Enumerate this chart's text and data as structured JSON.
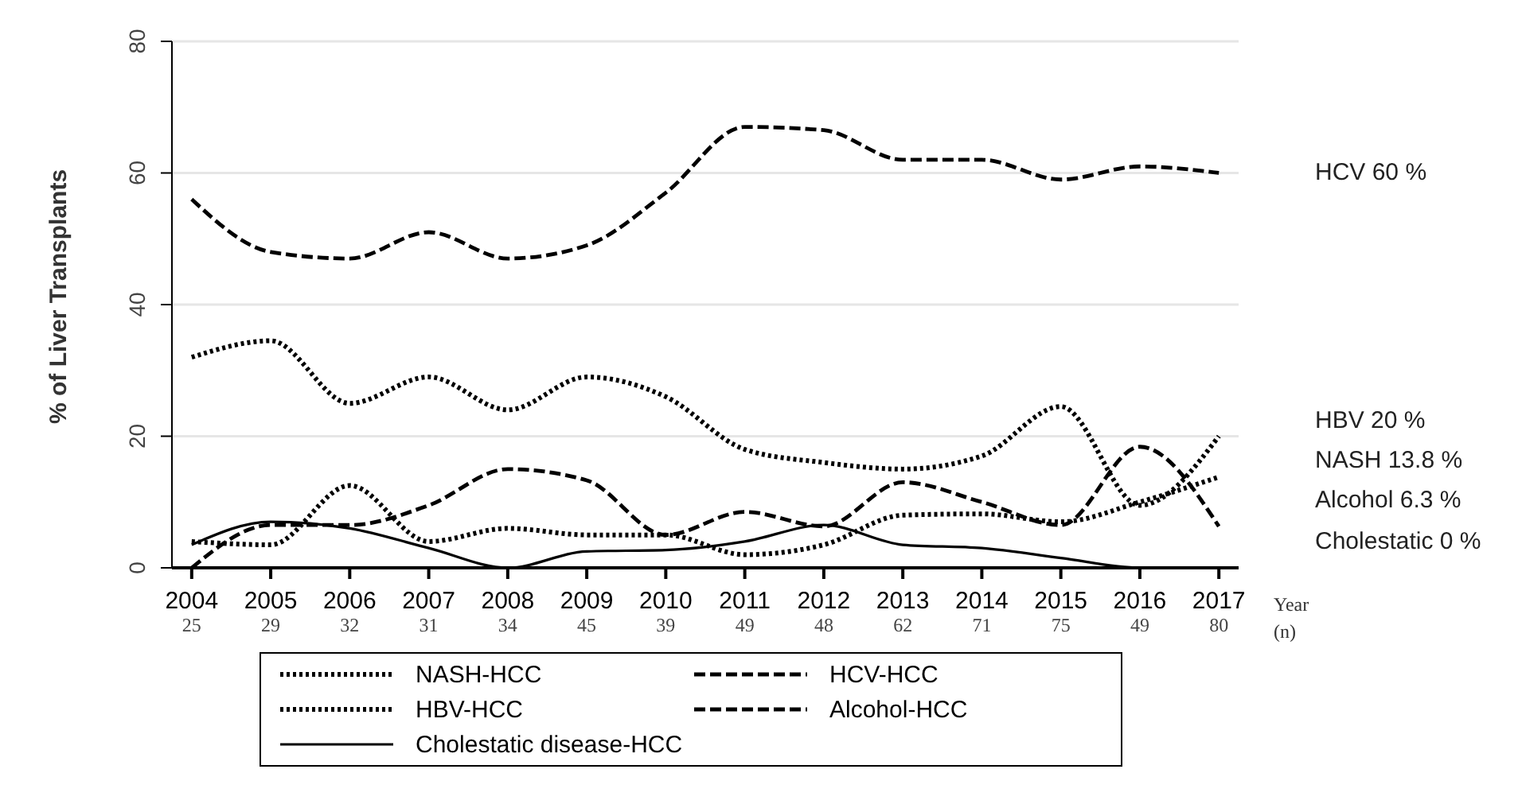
{
  "chart_data": {
    "type": "line",
    "ylabel": "% of Liver Transplants",
    "categories": [
      "2004",
      "2005",
      "2006",
      "2007",
      "2008",
      "2009",
      "2010",
      "2011",
      "2012",
      "2013",
      "2014",
      "2015",
      "2016",
      "2017"
    ],
    "ylim": [
      0,
      80
    ],
    "yticks": [
      0,
      20,
      40,
      60,
      80
    ],
    "grid": "y",
    "legend": "bottom",
    "series": [
      {
        "name": "NASH-HCC",
        "color": "#000000",
        "line_style": "dotted",
        "values": [
          4,
          3.5,
          12.5,
          4,
          6,
          5,
          5,
          2,
          3.5,
          8,
          8.2,
          7,
          10,
          13.8
        ]
      },
      {
        "name": "HCV-HCC",
        "color": "#000000",
        "line_style": "dashed",
        "values": [
          56,
          48,
          47,
          51,
          47,
          49,
          57,
          67,
          66.5,
          62,
          62,
          59,
          61,
          60
        ]
      },
      {
        "name": "HBV-HCC",
        "color": "#000000",
        "line_style": "dotted",
        "values": [
          32,
          34.5,
          25,
          29,
          24,
          29,
          26,
          18,
          16,
          15,
          17,
          24.5,
          9.5,
          20
        ]
      },
      {
        "name": "Alcohol-HCC",
        "color": "#000000",
        "line_style": "dashed",
        "values": [
          0,
          6.5,
          6.5,
          9.5,
          15,
          13.3,
          5,
          8.5,
          6.3,
          13,
          10,
          6.5,
          18.4,
          6.3
        ]
      },
      {
        "name": "Cholestatic disease-HCC",
        "color": "#000000",
        "line_style": "solid",
        "values": [
          3.5,
          7,
          6,
          3,
          0,
          2.5,
          2.7,
          4,
          6.5,
          3.5,
          3,
          1.5,
          0,
          0
        ]
      }
    ],
    "annotations": [
      "Year",
      "(n)",
      "25",
      "29",
      "32",
      "31",
      "34",
      "45",
      "39",
      "49",
      "48",
      "62",
      "71",
      "75",
      "49",
      "80",
      "HCV 60 %",
      "HBV 20 %",
      "NASH 13.8 %",
      "Alcohol 6.3 %",
      "Cholestatic 0 %"
    ]
  }
}
